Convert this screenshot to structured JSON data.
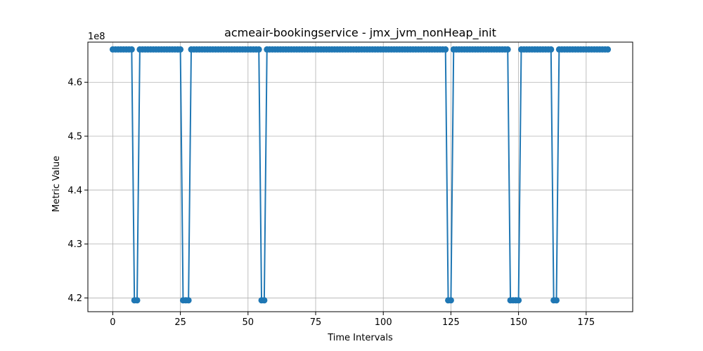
{
  "chart_data": {
    "type": "line",
    "title": "acmeair-bookingservice - jmx_jvm_nonHeap_init",
    "xlabel": "Time Intervals",
    "ylabel": "Metric Value",
    "offset_text": "1e8",
    "xlim": [
      -9.2,
      192.2
    ],
    "ylim": [
      417450000.0,
      467450000.0
    ],
    "x_ticks": [
      0,
      25,
      50,
      75,
      100,
      125,
      150,
      175
    ],
    "x_tick_labels": [
      "0",
      "25",
      "50",
      "75",
      "100",
      "125",
      "150",
      "175"
    ],
    "y_ticks": [
      420000000.0,
      430000000.0,
      440000000.0,
      450000000.0,
      460000000.0
    ],
    "y_tick_labels": [
      "4.2",
      "4.3",
      "4.4",
      "4.5",
      "4.6"
    ],
    "grid": true,
    "color": "#1f77b4",
    "high_value": 466092032,
    "low_value": 419561472,
    "x_start": 0,
    "x_end": 183,
    "low_points": [
      8,
      9,
      26,
      27,
      28,
      55,
      56,
      124,
      125,
      147,
      148,
      149,
      150,
      163,
      164
    ],
    "series": [
      {
        "values_rule": "high_value everywhere except low_points"
      }
    ]
  }
}
